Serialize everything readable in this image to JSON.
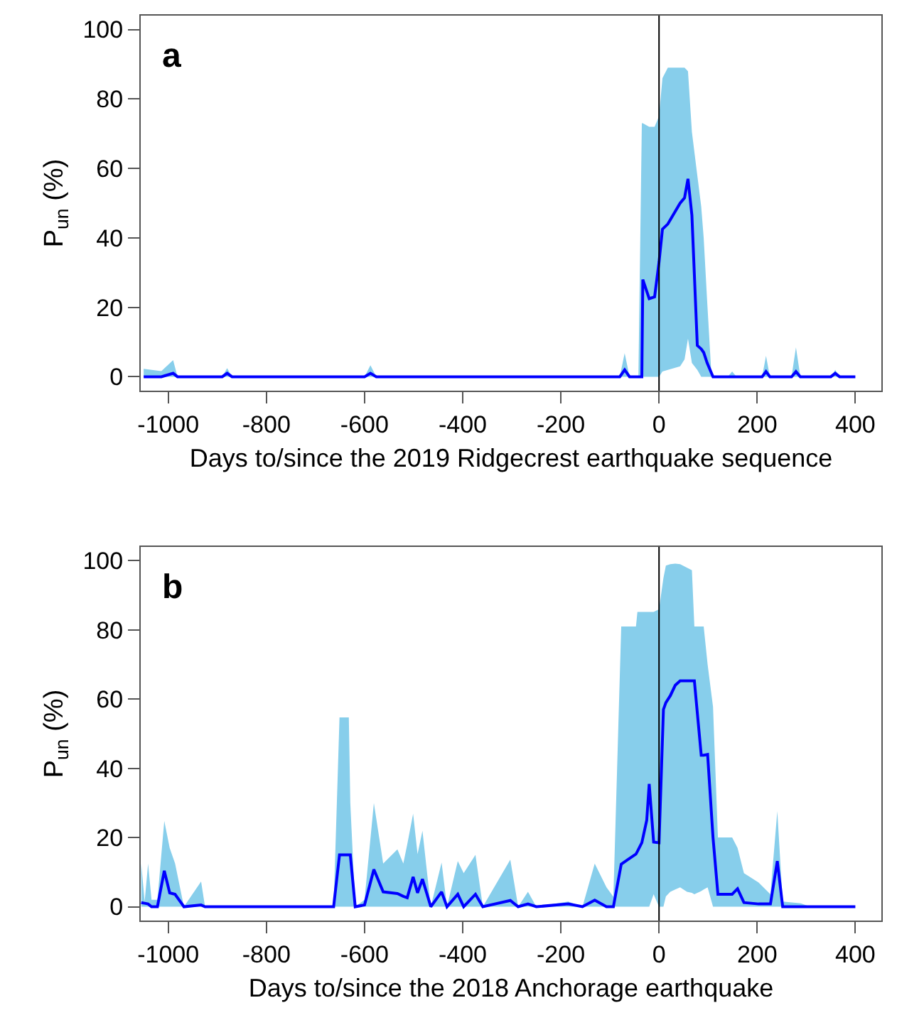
{
  "chart_data": [
    {
      "type": "line",
      "annotations": [
        "a"
      ],
      "xlabel": "Days to/since the 2019 Ridgecrest earthquake sequence",
      "ylabel": "P$_{un}$ (%)",
      "x": [
        -1050,
        -1014,
        -990,
        -981,
        -890,
        -880,
        -870,
        -600,
        -588,
        -576,
        -80,
        -70,
        -60,
        -42,
        -35,
        -33,
        -20,
        -9,
        0,
        7,
        18,
        43,
        52,
        59,
        67,
        78,
        86,
        91,
        98,
        107,
        110,
        140,
        149,
        158,
        210,
        218,
        226,
        270,
        279,
        288,
        350,
        359,
        368,
        400
      ],
      "series": [
        {
          "color": "#0000ff",
          "values": [
            0,
            0,
            1,
            0,
            0,
            1,
            0,
            0,
            1,
            0,
            0,
            2,
            0,
            0,
            0,
            28,
            22.5,
            23,
            33,
            42.5,
            44,
            50,
            51.5,
            57,
            46.5,
            9,
            8,
            7,
            4,
            1,
            0,
            0,
            0,
            0,
            0,
            1.5,
            0,
            0,
            1.5,
            0,
            0,
            1,
            0,
            0
          ],
          "lower": [
            0,
            0,
            0,
            0,
            0,
            0,
            0,
            0,
            0,
            0,
            0,
            0,
            0,
            0,
            0,
            0,
            0,
            0,
            0,
            1.5,
            2,
            3,
            5,
            11,
            4,
            2,
            0,
            0,
            0,
            0,
            0,
            0,
            0,
            0,
            0,
            0,
            0,
            0,
            0,
            0,
            0,
            0,
            0,
            0
          ],
          "upper": [
            2.3,
            1.6,
            4.8,
            0,
            0,
            2.5,
            0,
            0,
            3.3,
            0,
            0,
            6.8,
            0,
            0,
            73,
            73,
            72,
            72,
            75,
            86,
            89,
            89,
            89,
            88,
            70.5,
            58,
            49,
            40,
            22,
            0,
            0,
            0,
            1.5,
            0,
            0,
            6,
            0,
            0,
            8.5,
            0,
            0,
            2,
            0,
            0
          ]
        }
      ],
      "xlim": [
        -1056,
        453
      ],
      "ylim": [
        -4,
        104
      ],
      "xticks": [
        -1000,
        -800,
        -600,
        -400,
        -200,
        0,
        200,
        400
      ],
      "yticks": [
        0,
        20,
        40,
        60,
        80,
        100
      ],
      "ref_lines": [
        {
          "axis": "x",
          "value": 0,
          "color": "#000000"
        }
      ],
      "grid": false,
      "marker": "none",
      "line_style": "solid"
    },
    {
      "type": "line",
      "annotations": [
        "b"
      ],
      "xlabel": "Days to/since the 2018 Anchorage earthquake",
      "ylabel": "P$_{un}$ (%)",
      "x": [
        -1055,
        -1048,
        -1041,
        -1034,
        -1022,
        -1008,
        -997,
        -986,
        -968,
        -933,
        -925,
        -663,
        -651,
        -648,
        -632,
        -629,
        -619,
        -600,
        -581,
        -562,
        -533,
        -521,
        -513,
        -501,
        -492,
        -482,
        -465,
        -443,
        -432,
        -410,
        -398,
        -374,
        -359,
        -303,
        -287,
        -267,
        -250,
        -185,
        -156,
        -131,
        -107,
        -93,
        -77,
        -64,
        -47,
        -44,
        -35,
        -25,
        -20,
        -11,
        0,
        9,
        14,
        23,
        33,
        43,
        57,
        67,
        72,
        86,
        91,
        99,
        110,
        120,
        149,
        160,
        173,
        203,
        227,
        241,
        252,
        289,
        308,
        400
      ],
      "series": [
        {
          "color": "#0000ff",
          "values": [
            1.2,
            1,
            0.8,
            0,
            0,
            10.4,
            4,
            3.6,
            0,
            0.5,
            0,
            0,
            15,
            15,
            15,
            15,
            0,
            0.5,
            10.8,
            4.3,
            3.8,
            3,
            2.6,
            8.6,
            4,
            8,
            0,
            4.3,
            0,
            3.6,
            0,
            3.6,
            0,
            1.8,
            0,
            0.8,
            0,
            0.8,
            0,
            1.9,
            0,
            0,
            12.3,
            13.6,
            15.2,
            16,
            18.5,
            25,
            35.5,
            18.7,
            18.5,
            57,
            59,
            61,
            64,
            65.3,
            65.3,
            65.3,
            65.3,
            43.8,
            43.8,
            44,
            20,
            3.6,
            3.6,
            5.2,
            1.2,
            0.8,
            0.8,
            13.2,
            0,
            0,
            0,
            0
          ],
          "lower": [
            0,
            0,
            0,
            0,
            0,
            0,
            0,
            0,
            0,
            0,
            0,
            0,
            0,
            0,
            0,
            0,
            0,
            0,
            0,
            0,
            0,
            0,
            0,
            0,
            0,
            0,
            0,
            0,
            0,
            0,
            0,
            0,
            0,
            0,
            0,
            0,
            0,
            0,
            0,
            0,
            0,
            0,
            0,
            0,
            0,
            0,
            0,
            0,
            0,
            3.6,
            0,
            0,
            3,
            4.3,
            5,
            5.6,
            4.3,
            4,
            3.6,
            4.5,
            5,
            5.6,
            0,
            0,
            0,
            0,
            0,
            0,
            0,
            0,
            0,
            0,
            0,
            0
          ],
          "upper": [
            12.5,
            1.5,
            12.5,
            2,
            2,
            24.8,
            17,
            12.5,
            0,
            7.3,
            0,
            0,
            54.7,
            54.7,
            54.7,
            30,
            0,
            2,
            30,
            12.5,
            16.6,
            12.5,
            18,
            26.9,
            15.2,
            22,
            0,
            12.8,
            0,
            13.2,
            9.7,
            15,
            0,
            13.6,
            0,
            4.3,
            0,
            1.5,
            0,
            12.5,
            5.6,
            2.9,
            81,
            81,
            81,
            85.2,
            85.2,
            85.2,
            85.2,
            85.2,
            86,
            95,
            98.6,
            99,
            99.2,
            99,
            98,
            97.3,
            81,
            81,
            81,
            70,
            57.8,
            20,
            20,
            17,
            9.7,
            7,
            3.6,
            27.6,
            1.5,
            1,
            0,
            0
          ]
        }
      ],
      "xlim": [
        -1056,
        453
      ],
      "ylim": [
        -4,
        104
      ],
      "xticks": [
        -1000,
        -800,
        -600,
        -400,
        -200,
        0,
        200,
        400
      ],
      "yticks": [
        0,
        20,
        40,
        60,
        80,
        100
      ],
      "ref_lines": [
        {
          "axis": "x",
          "value": 0,
          "color": "#000000"
        }
      ],
      "grid": false,
      "marker": "none",
      "line_style": "solid"
    }
  ]
}
